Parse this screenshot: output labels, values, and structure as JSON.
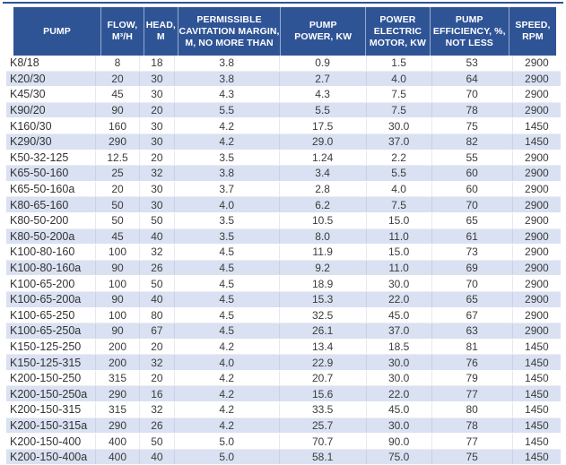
{
  "colors": {
    "header_bg": "#2F5496",
    "header_text": "#FFFFFF",
    "alt_row_bg": "#D9E1F2",
    "body_text": "#3B3B3B"
  },
  "table": {
    "headers": [
      "PUMP",
      "FLOW,\nM³/H",
      "HEAD,\nM",
      "PERMISSIBLE\nCAVITATION MARGIN,\nM, NO MORE THAN",
      "PUMP\nPOWER, KW",
      "POWER\nELECTRIC\nMOTOR, KW",
      "PUMP\nEFFICIENCY, %,\nNOT LESS",
      "SPEED,\nRPM"
    ],
    "rows": [
      [
        "K8/18",
        "8",
        "18",
        "3.8",
        "0.9",
        "1.5",
        "53",
        "2900"
      ],
      [
        "K20/30",
        "20",
        "30",
        "3.8",
        "2.7",
        "4.0",
        "64",
        "2900"
      ],
      [
        "K45/30",
        "45",
        "30",
        "4.3",
        "4.3",
        "7.5",
        "70",
        "2900"
      ],
      [
        "K90/20",
        "90",
        "20",
        "5.5",
        "5.5",
        "7.5",
        "78",
        "2900"
      ],
      [
        "K160/30",
        "160",
        "30",
        "4.2",
        "17.5",
        "30.0",
        "75",
        "1450"
      ],
      [
        "K290/30",
        "290",
        "30",
        "4.2",
        "29.0",
        "37.0",
        "82",
        "1450"
      ],
      [
        "K50-32-125",
        "12.5",
        "20",
        "3.5",
        "1.24",
        "2.2",
        "55",
        "2900"
      ],
      [
        "K65-50-160",
        "25",
        "32",
        "3.8",
        "3.4",
        "5.5",
        "60",
        "2900"
      ],
      [
        "K65-50-160a",
        "20",
        "30",
        "3.7",
        "2.8",
        "4.0",
        "60",
        "2900"
      ],
      [
        "K80-65-160",
        "50",
        "30",
        "4.0",
        "6.2",
        "7.5",
        "70",
        "2900"
      ],
      [
        "K80-50-200",
        "50",
        "50",
        "3.5",
        "10.5",
        "15.0",
        "65",
        "2900"
      ],
      [
        "K80-50-200a",
        "45",
        "40",
        "3.5",
        "8.0",
        "11.0",
        "61",
        "2900"
      ],
      [
        "K100-80-160",
        "100",
        "32",
        "4.5",
        "11.9",
        "15.0",
        "73",
        "2900"
      ],
      [
        "K100-80-160a",
        "90",
        "26",
        "4.5",
        "9.2",
        "11.0",
        "69",
        "2900"
      ],
      [
        "K100-65-200",
        "100",
        "50",
        "4.5",
        "18.9",
        "30.0",
        "70",
        "2900"
      ],
      [
        "K100-65-200a",
        "90",
        "40",
        "4.5",
        "15.3",
        "22.0",
        "65",
        "2900"
      ],
      [
        "K100-65-250",
        "100",
        "80",
        "4.5",
        "32.5",
        "45.0",
        "67",
        "2900"
      ],
      [
        "K100-65-250a",
        "90",
        "67",
        "4.5",
        "26.1",
        "37.0",
        "63",
        "2900"
      ],
      [
        "K150-125-250",
        "200",
        "20",
        "4.2",
        "13.4",
        "18.5",
        "81",
        "1450"
      ],
      [
        "K150-125-315",
        "200",
        "32",
        "4.0",
        "22.9",
        "30.0",
        "76",
        "1450"
      ],
      [
        "K200-150-250",
        "315",
        "20",
        "4.2",
        "20.7",
        "30.0",
        "79",
        "1450"
      ],
      [
        "K200-150-250a",
        "290",
        "16",
        "4.2",
        "15.6",
        "22.0",
        "77",
        "1450"
      ],
      [
        "K200-150-315",
        "315",
        "32",
        "4.2",
        "33.5",
        "45.0",
        "80",
        "1450"
      ],
      [
        "K200-150-315a",
        "290",
        "26",
        "4.2",
        "25.7",
        "30.0",
        "78",
        "1450"
      ],
      [
        "K200-150-400",
        "400",
        "50",
        "5.0",
        "70.7",
        "90.0",
        "77",
        "1450"
      ],
      [
        "K200-150-400a",
        "400",
        "40",
        "5.0",
        "58.1",
        "75.0",
        "75",
        "1450"
      ]
    ]
  }
}
